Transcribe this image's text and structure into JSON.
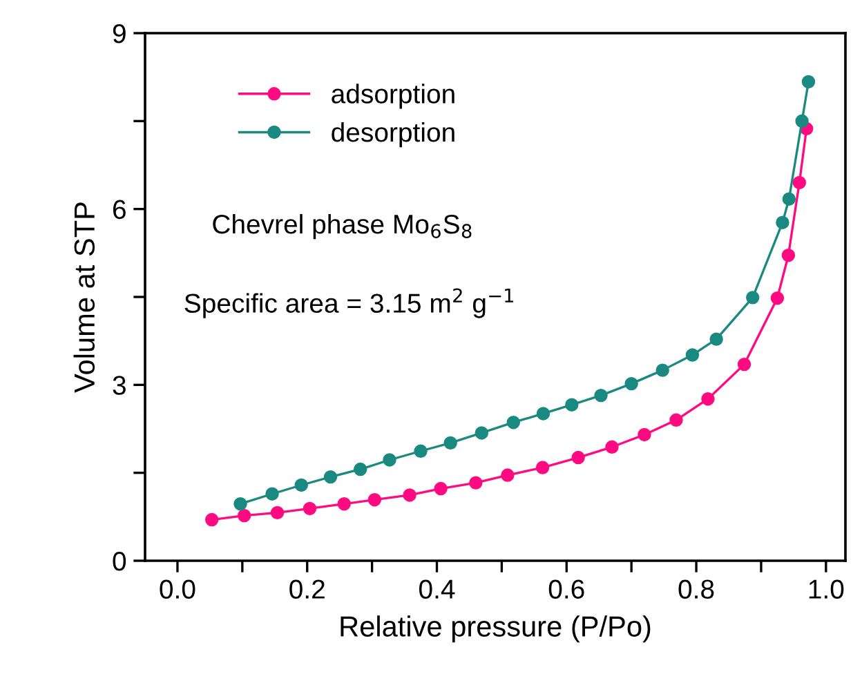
{
  "chart_data": {
    "type": "line",
    "xlabel": "Relative pressure (P/Po)",
    "ylabel": "Volume at STP",
    "series": [
      {
        "name": "adsorption",
        "color": "#ff0a80",
        "x": [
          0.053,
          0.103,
          0.154,
          0.204,
          0.257,
          0.304,
          0.358,
          0.406,
          0.46,
          0.509,
          0.563,
          0.618,
          0.67,
          0.72,
          0.769,
          0.818,
          0.874,
          0.925,
          0.942,
          0.959,
          0.97
        ],
        "values": [
          0.7,
          0.77,
          0.82,
          0.89,
          0.97,
          1.04,
          1.12,
          1.23,
          1.33,
          1.46,
          1.59,
          1.76,
          1.94,
          2.15,
          2.4,
          2.76,
          3.35,
          4.48,
          5.21,
          6.45,
          7.37
        ]
      },
      {
        "name": "desorption",
        "color": "#1a8a80",
        "x": [
          0.097,
          0.146,
          0.191,
          0.236,
          0.282,
          0.327,
          0.375,
          0.421,
          0.469,
          0.518,
          0.564,
          0.608,
          0.653,
          0.7,
          0.748,
          0.794,
          0.831,
          0.887,
          0.933,
          0.943,
          0.963,
          0.973
        ],
        "values": [
          0.97,
          1.14,
          1.29,
          1.43,
          1.56,
          1.72,
          1.87,
          2.01,
          2.18,
          2.36,
          2.51,
          2.66,
          2.82,
          3.02,
          3.25,
          3.51,
          3.78,
          4.49,
          5.77,
          6.17,
          7.5,
          8.17
        ]
      }
    ],
    "marker": "circle",
    "line_style": "solid",
    "legend": "top left",
    "grid": false,
    "xlim": [
      -0.05,
      1.03
    ],
    "ylim": [
      0,
      9
    ],
    "xticks": [
      {
        "value": 0.0,
        "label": "0.0"
      },
      {
        "value": 0.1,
        "label": null
      },
      {
        "value": 0.2,
        "label": "0.2"
      },
      {
        "value": 0.3,
        "label": null
      },
      {
        "value": 0.4,
        "label": "0.4"
      },
      {
        "value": 0.5,
        "label": null
      },
      {
        "value": 0.6,
        "label": "0.6"
      },
      {
        "value": 0.7,
        "label": null
      },
      {
        "value": 0.8,
        "label": "0.8"
      },
      {
        "value": 0.9,
        "label": null
      },
      {
        "value": 1.0,
        "label": "1.0"
      }
    ],
    "yticks": [
      0,
      {
        "value": 1.5,
        "label": null
      },
      3,
      {
        "value": 4.5,
        "label": null
      },
      6,
      {
        "value": 7.5,
        "label": null
      },
      9
    ],
    "annotations": [
      "Chevrel phase Mo$_{6}$S$_{8}$",
      "Specific area = 3.15 m$^{2}$ g$^{−1}$"
    ]
  }
}
